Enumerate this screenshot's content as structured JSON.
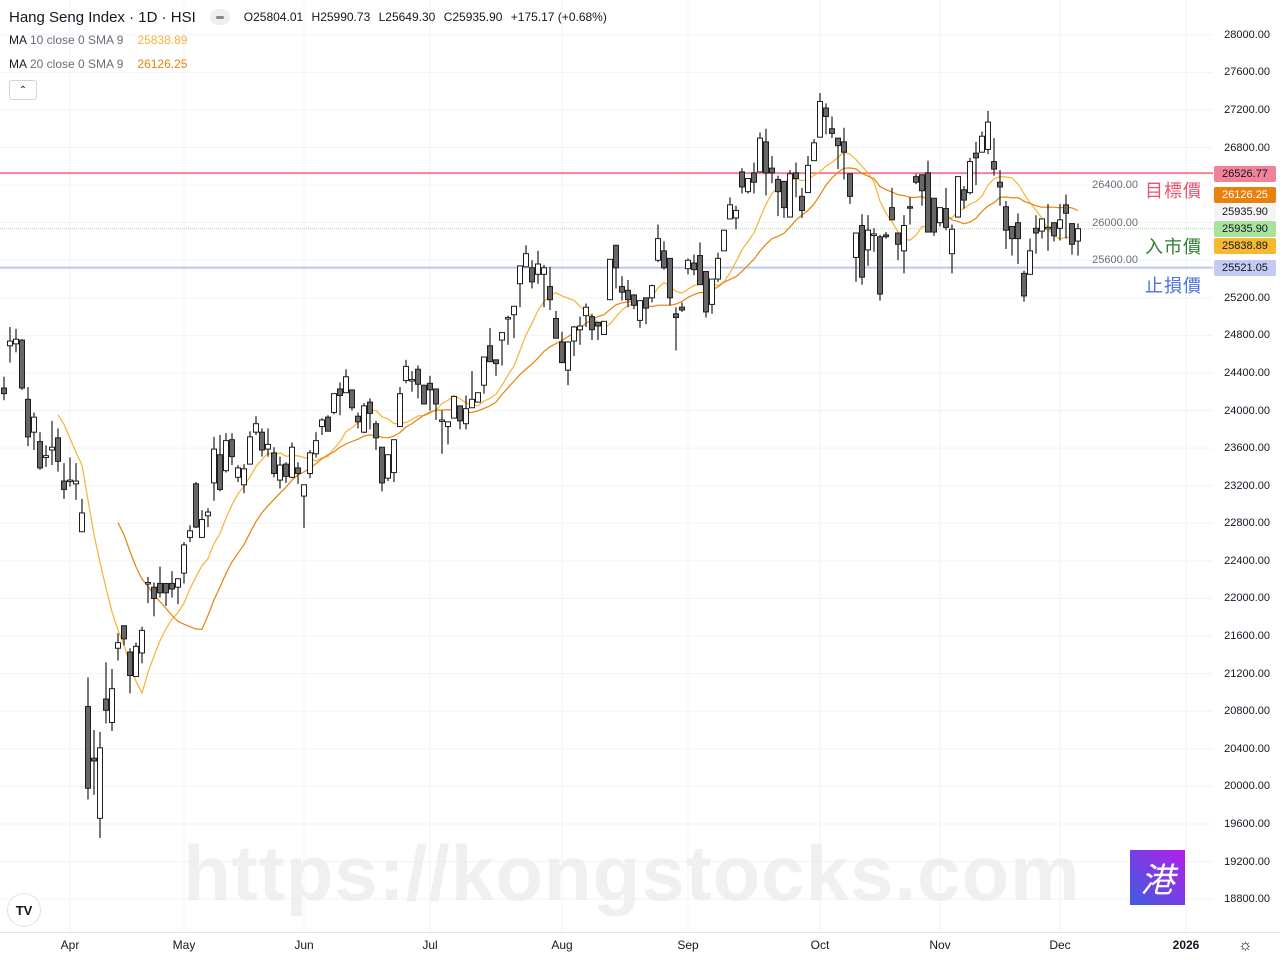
{
  "header": {
    "title": "Hang Seng Index · 1D · HSI",
    "ohlc": [
      {
        "label": "O",
        "value": "25804.01"
      },
      {
        "label": "H",
        "value": "25990.73"
      },
      {
        "label": "L",
        "value": "25649.30"
      },
      {
        "label": "C",
        "value": "25935.90"
      }
    ],
    "change": "+175.17 (+0.68%)"
  },
  "indicators": [
    {
      "name": "MA",
      "params": "10 close 0 SMA 9",
      "value": "25838.89",
      "color": "#f9b233"
    },
    {
      "name": "MA",
      "params": "20 close 0 SMA 9",
      "value": "26126.25",
      "color": "#e8820c"
    }
  ],
  "collapse_icon": "chevron-up-icon",
  "chart_data": {
    "type": "candlestick",
    "symbol": "HSI",
    "interval": "1D",
    "ylim": [
      18450,
      28370
    ],
    "grid": true,
    "y_ticks": [
      28000,
      27600,
      27200,
      26800,
      26400,
      26000,
      25600,
      25200,
      24800,
      24400,
      24000,
      23600,
      23200,
      22800,
      22400,
      22000,
      21600,
      21200,
      20800,
      20400,
      20000,
      19600,
      19200,
      18800
    ],
    "y_tick_labels": [
      "28000.00",
      "27600.00",
      "27200.00",
      "26800.00",
      "26400.00",
      "26000.00",
      "25600.00",
      "25200.00",
      "24800.00",
      "24400.00",
      "24000.00",
      "23600.00",
      "23200.00",
      "22800.00",
      "22400.00",
      "22000.00",
      "21600.00",
      "21200.00",
      "20800.00",
      "20400.00",
      "20000.00",
      "19600.00",
      "19200.00",
      "18800.00"
    ],
    "x_ticks": [
      {
        "label": "Apr",
        "index": 11
      },
      {
        "label": "May",
        "index": 30
      },
      {
        "label": "Jun",
        "index": 50
      },
      {
        "label": "Jul",
        "index": 71
      },
      {
        "label": "Aug",
        "index": 93
      },
      {
        "label": "Sep",
        "index": 114
      },
      {
        "label": "Oct",
        "index": 136
      },
      {
        "label": "Nov",
        "index": 156
      },
      {
        "label": "Dec",
        "index": 176
      },
      {
        "label": "2026",
        "index": 197,
        "bold": true
      }
    ],
    "up_color": "#ffffff",
    "down_color": "#676767",
    "ohlc": [
      [
        24240,
        24360,
        24110,
        24180
      ],
      [
        24690,
        24890,
        24510,
        24740
      ],
      [
        24710,
        24870,
        24620,
        24760
      ],
      [
        24750,
        24760,
        24220,
        24240
      ],
      [
        24120,
        24250,
        23620,
        23720
      ],
      [
        23770,
        23980,
        23580,
        23930
      ],
      [
        23670,
        23770,
        23370,
        23390
      ],
      [
        23500,
        23630,
        23400,
        23520
      ],
      [
        23580,
        23890,
        23420,
        23610
      ],
      [
        23710,
        23810,
        23350,
        23460
      ],
      [
        23250,
        23440,
        23060,
        23160
      ],
      [
        23250,
        23500,
        23190,
        23260
      ],
      [
        23220,
        23440,
        23050,
        23250
      ],
      [
        22710,
        23060,
        22710,
        22910
      ],
      [
        20850,
        21160,
        19860,
        19980
      ],
      [
        20300,
        20600,
        19910,
        20270
      ],
      [
        19660,
        20580,
        19450,
        20410
      ],
      [
        20930,
        21320,
        20670,
        20810
      ],
      [
        20680,
        21250,
        20590,
        21040
      ],
      [
        21470,
        21630,
        21340,
        21530
      ],
      [
        21710,
        21710,
        21500,
        21570
      ],
      [
        21430,
        21470,
        20990,
        21180
      ],
      [
        21170,
        21530,
        21170,
        21490
      ],
      [
        21420,
        21700,
        21310,
        21660
      ],
      [
        22160,
        22230,
        21950,
        22170
      ],
      [
        22120,
        22170,
        21810,
        22000
      ],
      [
        22160,
        22340,
        22010,
        22060
      ],
      [
        22160,
        22160,
        21920,
        22060
      ],
      [
        22160,
        22290,
        22010,
        22100
      ],
      [
        22120,
        22210,
        21940,
        22210
      ],
      [
        22270,
        22600,
        22160,
        22570
      ],
      [
        22650,
        22780,
        22600,
        22720
      ],
      [
        23220,
        23240,
        22750,
        22760
      ],
      [
        22650,
        22940,
        22650,
        22840
      ],
      [
        22880,
        22960,
        22760,
        22920
      ],
      [
        23230,
        23720,
        23040,
        23590
      ],
      [
        23530,
        23740,
        23140,
        23160
      ],
      [
        23360,
        23760,
        23340,
        23680
      ],
      [
        23690,
        23760,
        23420,
        23510
      ],
      [
        23290,
        23420,
        23240,
        23390
      ],
      [
        23210,
        23430,
        23120,
        23380
      ],
      [
        23430,
        23780,
        23430,
        23720
      ],
      [
        23770,
        23940,
        23740,
        23860
      ],
      [
        23770,
        23810,
        23510,
        23580
      ],
      [
        23590,
        23810,
        23510,
        23640
      ],
      [
        23550,
        23610,
        23290,
        23330
      ],
      [
        23260,
        23510,
        23170,
        23420
      ],
      [
        23430,
        23450,
        23230,
        23300
      ],
      [
        23290,
        23660,
        23280,
        23610
      ],
      [
        23390,
        23450,
        23220,
        23330
      ],
      [
        23090,
        23210,
        22750,
        23210
      ],
      [
        23330,
        23580,
        23280,
        23550
      ],
      [
        23540,
        23770,
        23500,
        23680
      ],
      [
        23830,
        23920,
        23740,
        23900
      ],
      [
        23930,
        23950,
        23780,
        23780
      ],
      [
        23980,
        24180,
        23960,
        24180
      ],
      [
        24230,
        24300,
        23950,
        24160
      ],
      [
        24190,
        24440,
        24190,
        24360
      ],
      [
        24220,
        24220,
        24000,
        24030
      ],
      [
        23940,
        23980,
        23810,
        23880
      ],
      [
        23770,
        24080,
        23760,
        24050
      ],
      [
        24090,
        24130,
        23800,
        23970
      ],
      [
        23860,
        23890,
        23580,
        23710
      ],
      [
        23610,
        23610,
        23140,
        23230
      ],
      [
        23280,
        23530,
        23250,
        23530
      ],
      [
        23340,
        23690,
        23240,
        23690
      ],
      [
        23830,
        24250,
        23830,
        24180
      ],
      [
        24320,
        24540,
        24290,
        24470
      ],
      [
        24330,
        24420,
        24200,
        24330
      ],
      [
        24440,
        24480,
        24130,
        24280
      ],
      [
        24270,
        24270,
        24070,
        24070
      ],
      [
        24290,
        24370,
        24000,
        24220
      ],
      [
        24230,
        24230,
        23900,
        24070
      ],
      [
        23900,
        24000,
        23540,
        23900
      ],
      [
        23830,
        23880,
        23640,
        23880
      ],
      [
        23920,
        24160,
        23920,
        24150
      ],
      [
        24050,
        24050,
        23800,
        23890
      ],
      [
        23860,
        24160,
        23800,
        24020
      ],
      [
        24030,
        24420,
        24030,
        24120
      ],
      [
        24090,
        24190,
        24090,
        24190
      ],
      [
        24270,
        24570,
        24180,
        24570
      ],
      [
        24690,
        24880,
        24520,
        24520
      ],
      [
        24540,
        24540,
        24370,
        24500
      ],
      [
        24750,
        24830,
        24480,
        24830
      ],
      [
        24990,
        25010,
        24700,
        24990
      ],
      [
        25020,
        25110,
        24770,
        25110
      ],
      [
        25350,
        25540,
        25100,
        25540
      ],
      [
        25530,
        25760,
        25530,
        25670
      ],
      [
        25520,
        25600,
        25300,
        25370
      ],
      [
        25450,
        25700,
        25350,
        25560
      ],
      [
        25450,
        25550,
        25100,
        25520
      ],
      [
        25320,
        25530,
        25070,
        25180
      ],
      [
        24980,
        25060,
        24770,
        24770
      ],
      [
        24730,
        24840,
        24510,
        24510
      ],
      [
        24430,
        24730,
        24270,
        24730
      ],
      [
        24740,
        24900,
        24580,
        24890
      ],
      [
        24860,
        25000,
        24700,
        24900
      ],
      [
        25010,
        25140,
        24890,
        25100
      ],
      [
        25000,
        25030,
        24750,
        24860
      ],
      [
        24940,
        24940,
        24750,
        24900
      ],
      [
        24810,
        24950,
        24810,
        24950
      ],
      [
        25180,
        25610,
        25180,
        25610
      ],
      [
        25760,
        25760,
        25300,
        25520
      ],
      [
        25320,
        25430,
        25170,
        25260
      ],
      [
        25280,
        25390,
        25100,
        25180
      ],
      [
        25230,
        25240,
        25080,
        25120
      ],
      [
        24960,
        25170,
        24880,
        25170
      ],
      [
        25200,
        25200,
        24920,
        25090
      ],
      [
        25200,
        25340,
        25150,
        25330
      ],
      [
        25600,
        25980,
        25580,
        25830
      ],
      [
        25700,
        25800,
        25500,
        25520
      ],
      [
        25620,
        25620,
        25120,
        25200
      ],
      [
        25030,
        25100,
        24640,
        24990
      ],
      [
        25100,
        25150,
        25050,
        25070
      ],
      [
        25510,
        25620,
        25450,
        25600
      ],
      [
        25570,
        25660,
        25440,
        25500
      ],
      [
        25650,
        25790,
        25340,
        25340
      ],
      [
        25480,
        25480,
        24990,
        25050
      ],
      [
        25130,
        25400,
        25030,
        25400
      ],
      [
        25400,
        25680,
        25370,
        25620
      ],
      [
        25700,
        25920,
        25700,
        25920
      ],
      [
        26040,
        26270,
        26040,
        26190
      ],
      [
        26050,
        26180,
        25930,
        26130
      ],
      [
        26540,
        26580,
        26310,
        26380
      ],
      [
        26330,
        26470,
        26310,
        26470
      ],
      [
        26530,
        26640,
        26310,
        26430
      ],
      [
        26540,
        26960,
        26540,
        26900
      ],
      [
        26860,
        27000,
        26290,
        26530
      ],
      [
        26580,
        26710,
        26420,
        26530
      ],
      [
        26460,
        26500,
        26070,
        26330
      ],
      [
        26440,
        26440,
        26050,
        26160
      ],
      [
        26060,
        26560,
        26060,
        26520
      ],
      [
        26530,
        26640,
        26270,
        26470
      ],
      [
        26280,
        26370,
        26050,
        26130
      ],
      [
        26320,
        26710,
        26320,
        26610
      ],
      [
        26660,
        26890,
        26660,
        26850
      ],
      [
        26910,
        27380,
        26910,
        27290
      ],
      [
        27220,
        27270,
        26940,
        27130
      ],
      [
        27000,
        27130,
        26900,
        26950
      ],
      [
        26900,
        26900,
        26570,
        26820
      ],
      [
        26860,
        27010,
        26460,
        26750
      ],
      [
        26520,
        26520,
        26200,
        26280
      ],
      [
        25630,
        25890,
        25370,
        25890
      ],
      [
        25970,
        26090,
        25340,
        25420
      ],
      [
        25710,
        26080,
        25540,
        25920
      ],
      [
        25880,
        25940,
        25690,
        25880
      ],
      [
        25850,
        25870,
        25170,
        25240
      ],
      [
        25870,
        25900,
        25830,
        25850
      ],
      [
        26160,
        26370,
        26030,
        26030
      ],
      [
        25890,
        25890,
        25600,
        25770
      ],
      [
        25700,
        26080,
        25460,
        25970
      ],
      [
        26170,
        26270,
        25980,
        26160
      ],
      [
        26490,
        26520,
        26410,
        26430
      ],
      [
        26510,
        26510,
        26180,
        26340
      ],
      [
        26530,
        26660,
        25900,
        25900
      ],
      [
        26260,
        26260,
        25860,
        25900
      ],
      [
        26000,
        26160,
        25960,
        26160
      ],
      [
        26150,
        26370,
        25920,
        25950
      ],
      [
        25670,
        25980,
        25460,
        25930
      ],
      [
        26060,
        26490,
        26060,
        26490
      ],
      [
        26350,
        26390,
        26150,
        26240
      ],
      [
        26320,
        26690,
        26300,
        26650
      ],
      [
        26740,
        26860,
        26400,
        26690
      ],
      [
        26750,
        26970,
        26750,
        26920
      ],
      [
        26780,
        27190,
        26730,
        27070
      ],
      [
        26650,
        26900,
        26500,
        26570
      ],
      [
        26430,
        26560,
        26180,
        26380
      ],
      [
        26170,
        26230,
        25720,
        25920
      ],
      [
        25960,
        25960,
        25650,
        25830
      ],
      [
        26000,
        26100,
        25560,
        25830
      ],
      [
        25460,
        25490,
        25160,
        25220
      ],
      [
        25450,
        25830,
        25450,
        25700
      ],
      [
        25940,
        26080,
        25670,
        25890
      ],
      [
        25910,
        26040,
        25830,
        26040
      ],
      [
        25940,
        26200,
        25700,
        25950
      ],
      [
        26000,
        26000,
        25800,
        25860
      ],
      [
        25940,
        26200,
        25810,
        26030
      ],
      [
        26190,
        26300,
        25830,
        26100
      ],
      [
        25990,
        25990,
        25660,
        25770
      ],
      [
        25804.01,
        25990.73,
        25649.3,
        25935.9
      ]
    ],
    "moving_averages": [
      {
        "length": 10,
        "color": "#f9b233"
      },
      {
        "length": 20,
        "color": "#e8820c"
      }
    ],
    "horizontal_lines": [
      {
        "price": 26526.77,
        "color": "#f0829a",
        "style": "solid",
        "annotation": "目標價",
        "annotation_color": "#f0506e"
      },
      {
        "price": 25935.9,
        "color": "#9fe08f",
        "style": "dotted",
        "annotation": "入市價",
        "annotation_color": "#2e7d32"
      },
      {
        "price": 25521.05,
        "color": "#bcc7f0",
        "style": "solid",
        "annotation": "止損價",
        "annotation_color": "#4a72e0"
      }
    ],
    "price_labels": [
      {
        "text": "26526.77",
        "price": 26526.77,
        "bg": "#f0829a",
        "fg": "#131722"
      },
      {
        "text": "26126.25",
        "price": 26126.25,
        "bg": "#e8820c",
        "fg": "#ffffff"
      },
      {
        "text": "25935.90",
        "price": 25935.9,
        "bg": "#f5f5f5",
        "fg": "#131722"
      },
      {
        "text": "25935.90",
        "price": 25935.9,
        "bg": "#a8e39a",
        "fg": "#131722",
        "offset": 1
      },
      {
        "text": "25838.89",
        "price": 25838.89,
        "bg": "#f7b731",
        "fg": "#131722"
      },
      {
        "text": "25521.05",
        "price": 25521.05,
        "bg": "#c3cbf2",
        "fg": "#131722"
      }
    ]
  },
  "watermark": "https://kongstocks.com",
  "logo_text": "港",
  "tv_logo": "TV",
  "settings_icon": "gear-icon"
}
